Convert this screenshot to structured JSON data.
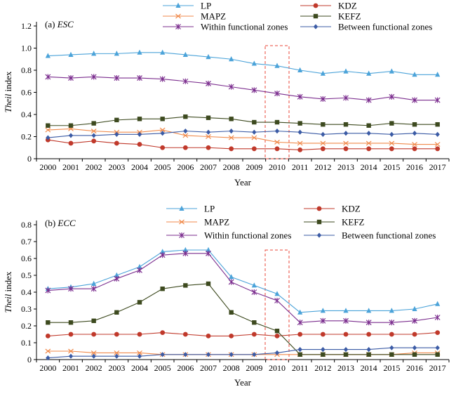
{
  "chart_data": [
    {
      "type": "line",
      "panel_label": "(a)",
      "panel_name": "ESC",
      "xlabel": "Year",
      "ylabel_italic": "Theil",
      "ylabel_rest": " index",
      "ylim": [
        0,
        1.2
      ],
      "yticks": [
        "0",
        "0.2",
        "0.4",
        "0.6",
        "0.8",
        "1.0",
        "1.2"
      ],
      "x": [
        "2000",
        "2001",
        "2002",
        "2003",
        "2004",
        "2005",
        "2006",
        "2007",
        "2008",
        "2009",
        "2010",
        "2011",
        "2012",
        "2013",
        "2014",
        "2015",
        "2016",
        "2017"
      ],
      "highlight_year": "2010",
      "series": [
        {
          "name": "LP",
          "color": "#4ba3d9",
          "marker": "triangle",
          "values": [
            0.93,
            0.94,
            0.95,
            0.95,
            0.96,
            0.96,
            0.94,
            0.92,
            0.9,
            0.86,
            0.84,
            0.8,
            0.77,
            0.79,
            0.77,
            0.79,
            0.76,
            0.76
          ]
        },
        {
          "name": "KDZ",
          "color": "#c0392b",
          "marker": "circle",
          "values": [
            0.17,
            0.14,
            0.16,
            0.14,
            0.13,
            0.1,
            0.1,
            0.1,
            0.09,
            0.09,
            0.09,
            0.08,
            0.09,
            0.09,
            0.09,
            0.09,
            0.09,
            0.09
          ]
        },
        {
          "name": "MAPZ",
          "color": "#f08a4b",
          "marker": "x",
          "values": [
            0.26,
            0.27,
            0.25,
            0.24,
            0.24,
            0.26,
            0.21,
            0.2,
            0.19,
            0.19,
            0.15,
            0.14,
            0.14,
            0.14,
            0.14,
            0.14,
            0.13,
            0.13
          ]
        },
        {
          "name": "KEFZ",
          "color": "#3d4a1f",
          "marker": "square",
          "values": [
            0.3,
            0.3,
            0.32,
            0.35,
            0.36,
            0.36,
            0.38,
            0.37,
            0.36,
            0.33,
            0.33,
            0.32,
            0.31,
            0.31,
            0.3,
            0.32,
            0.31,
            0.31
          ]
        },
        {
          "name": "Within functional zones",
          "color": "#7b2d8e",
          "marker": "star",
          "values": [
            0.74,
            0.73,
            0.74,
            0.73,
            0.73,
            0.72,
            0.7,
            0.68,
            0.65,
            0.62,
            0.59,
            0.56,
            0.54,
            0.55,
            0.53,
            0.56,
            0.53,
            0.53
          ]
        },
        {
          "name": "Between functional zones",
          "color": "#3b5ba5",
          "marker": "diamond",
          "values": [
            0.19,
            0.21,
            0.21,
            0.22,
            0.22,
            0.23,
            0.25,
            0.24,
            0.25,
            0.24,
            0.25,
            0.24,
            0.22,
            0.23,
            0.23,
            0.22,
            0.23,
            0.22
          ]
        }
      ]
    },
    {
      "type": "line",
      "panel_label": "(b)",
      "panel_name": "ECC",
      "xlabel": "Year",
      "ylabel_italic": "Theil",
      "ylabel_rest": " index",
      "ylim": [
        0,
        0.8
      ],
      "yticks": [
        "0",
        "0.1",
        "0.2",
        "0.3",
        "0.4",
        "0.5",
        "0.6",
        "0.7",
        "0.8"
      ],
      "x": [
        "2000",
        "2001",
        "2002",
        "2003",
        "2004",
        "2005",
        "2006",
        "2007",
        "2008",
        "2009",
        "2010",
        "2011",
        "2012",
        "2013",
        "2014",
        "2015",
        "2016",
        "2017"
      ],
      "highlight_year": "2010",
      "series": [
        {
          "name": "LP",
          "color": "#4ba3d9",
          "marker": "triangle",
          "values": [
            0.42,
            0.43,
            0.45,
            0.5,
            0.55,
            0.64,
            0.65,
            0.65,
            0.49,
            0.44,
            0.39,
            0.28,
            0.29,
            0.29,
            0.29,
            0.29,
            0.3,
            0.33
          ]
        },
        {
          "name": "KDZ",
          "color": "#c0392b",
          "marker": "circle",
          "values": [
            0.14,
            0.15,
            0.15,
            0.15,
            0.15,
            0.16,
            0.15,
            0.14,
            0.14,
            0.15,
            0.14,
            0.15,
            0.15,
            0.15,
            0.15,
            0.15,
            0.15,
            0.16
          ]
        },
        {
          "name": "MAPZ",
          "color": "#f08a4b",
          "marker": "x",
          "values": [
            0.05,
            0.05,
            0.04,
            0.04,
            0.04,
            0.03,
            0.03,
            0.03,
            0.03,
            0.03,
            0.03,
            0.03,
            0.03,
            0.03,
            0.03,
            0.03,
            0.04,
            0.04
          ]
        },
        {
          "name": "KEFZ",
          "color": "#3d4a1f",
          "marker": "square",
          "values": [
            0.22,
            0.22,
            0.23,
            0.28,
            0.34,
            0.42,
            0.44,
            0.45,
            0.28,
            0.22,
            0.17,
            0.03,
            0.03,
            0.03,
            0.03,
            0.03,
            0.03,
            0.03
          ]
        },
        {
          "name": "Within functional zones",
          "color": "#7b2d8e",
          "marker": "star",
          "values": [
            0.41,
            0.42,
            0.42,
            0.48,
            0.53,
            0.62,
            0.63,
            0.63,
            0.46,
            0.4,
            0.35,
            0.22,
            0.23,
            0.23,
            0.22,
            0.22,
            0.23,
            0.25
          ]
        },
        {
          "name": "Between functional zones",
          "color": "#3b5ba5",
          "marker": "diamond",
          "values": [
            0.01,
            0.02,
            0.02,
            0.02,
            0.02,
            0.03,
            0.03,
            0.03,
            0.03,
            0.03,
            0.04,
            0.06,
            0.06,
            0.06,
            0.06,
            0.07,
            0.07,
            0.07
          ]
        }
      ]
    }
  ]
}
